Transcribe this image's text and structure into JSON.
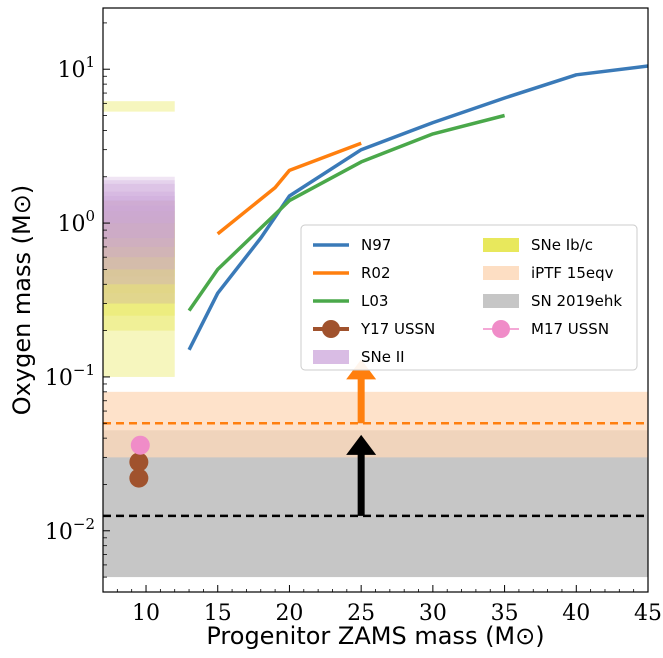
{
  "chart_data": {
    "type": "line",
    "xlabel": "Progenitor ZAMS mass (M⊙)",
    "ylabel": "Oxygen mass (M⊙)",
    "xlim": [
      7,
      45
    ],
    "ylim": [
      0.004,
      25
    ],
    "yscale": "log",
    "x_ticks": [
      10,
      15,
      20,
      25,
      30,
      35,
      40,
      45
    ],
    "y_ticks": [
      {
        "value": 0.01,
        "base": "10",
        "exp": "−2"
      },
      {
        "value": 0.1,
        "base": "10",
        "exp": "−1"
      },
      {
        "value": 1,
        "base": "10",
        "exp": "0"
      },
      {
        "value": 10,
        "base": "10",
        "exp": "1"
      }
    ],
    "series": [
      {
        "name": "N97",
        "color": "#3a7ab8",
        "x": [
          13,
          15,
          18,
          20,
          25,
          30,
          35,
          40,
          45
        ],
        "y": [
          0.15,
          0.35,
          0.8,
          1.5,
          3.0,
          4.5,
          6.5,
          9.2,
          10.5
        ]
      },
      {
        "name": "R02",
        "color": "#ff7f0e",
        "x": [
          15,
          19,
          20,
          25
        ],
        "y": [
          0.85,
          1.7,
          2.2,
          3.3
        ]
      },
      {
        "name": "L03",
        "color": "#4aa84a",
        "x": [
          13,
          15,
          20,
          25,
          30,
          35
        ],
        "y": [
          0.27,
          0.5,
          1.4,
          2.5,
          3.8,
          5.0
        ]
      },
      {
        "name": "Y17 USSN",
        "color": "#a0522d",
        "marker": "circle",
        "x": [
          9.5,
          9.5
        ],
        "y": [
          0.028,
          0.022
        ]
      },
      {
        "name": "M17 USSN",
        "color": "#f08cc8",
        "marker": "circle",
        "x": [
          9.6
        ],
        "y": [
          0.036
        ]
      }
    ],
    "bands": [
      {
        "name": "SNe II",
        "color": "#c9a0d8",
        "x": [
          7,
          12
        ],
        "ranges": [
          [
            0.3,
            2.0
          ],
          [
            0.4,
            1.9
          ],
          [
            0.6,
            1.8
          ],
          [
            0.8,
            1.6
          ],
          [
            1.0,
            1.5
          ],
          [
            0.5,
            1.4
          ],
          [
            0.7,
            1.3
          ]
        ]
      },
      {
        "name": "SNe Ib/c",
        "color": "#e8e85c",
        "x": [
          7,
          12
        ],
        "ranges": [
          [
            5.3,
            6.2
          ],
          [
            0.1,
            1.4
          ],
          [
            0.2,
            1.2
          ],
          [
            0.25,
            1.1
          ],
          [
            0.35,
            0.9
          ],
          [
            0.45,
            0.8
          ],
          [
            0.55,
            0.7
          ],
          [
            0.3,
            1.0
          ],
          [
            0.6,
            1.0
          ]
        ]
      },
      {
        "name": "iPTF 15eqv",
        "color": "#fdd8b8",
        "range": [
          0.03,
          0.08
        ],
        "line_y": 0.05,
        "line_color": "#ff7f0e"
      },
      {
        "name": "SN 2019ehk",
        "color": "#c6c6c6",
        "range": [
          0.005,
          0.045
        ],
        "line_y": 0.0125,
        "line_color": "#000000"
      }
    ],
    "arrows": [
      {
        "color": "#ff7f0e",
        "x": 25,
        "from": 0.05,
        "to": 0.13
      },
      {
        "color": "#000000",
        "x": 25,
        "from": 0.0125,
        "to": 0.042
      }
    ],
    "legend": {
      "placement": "right-center",
      "columns": [
        [
          "N97",
          "R02",
          "L03",
          "Y17 USSN",
          "SNe II"
        ],
        [
          "SNe Ib/c",
          "iPTF 15eqv",
          "SN 2019ehk",
          "M17 USSN"
        ]
      ]
    }
  }
}
